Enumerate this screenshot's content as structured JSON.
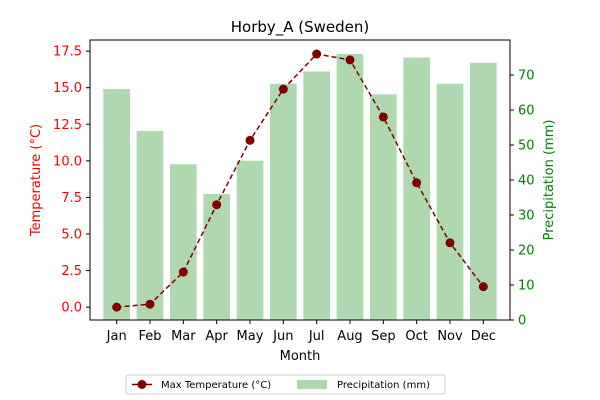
{
  "chart_data": {
    "type": "bar+line",
    "title": "Horby_A (Sweden)",
    "xlabel": "Month",
    "categories": [
      "Jan",
      "Feb",
      "Mar",
      "Apr",
      "May",
      "Jun",
      "Jul",
      "Aug",
      "Sep",
      "Oct",
      "Nov",
      "Dec"
    ],
    "series": [
      {
        "name": "Precipitation (mm)",
        "type": "bar",
        "axis": "right",
        "color": "#b0d8b0",
        "values": [
          66,
          54,
          44.5,
          36,
          45.5,
          67.5,
          71,
          76,
          64.5,
          75,
          67.5,
          73.5
        ]
      },
      {
        "name": "Max Temperature (°C)",
        "type": "line",
        "axis": "left",
        "color": "#800000",
        "values": [
          0.0,
          0.2,
          2.4,
          7.0,
          11.4,
          14.9,
          17.3,
          16.9,
          13.0,
          8.5,
          4.4,
          1.4
        ]
      }
    ],
    "y_left": {
      "label": "Temperature (°C)",
      "color": "#ff0000",
      "range": [
        -0.88,
        18.26
      ],
      "ticks": [
        "0.0",
        "2.5",
        "5.0",
        "7.5",
        "10.0",
        "12.5",
        "15.0",
        "17.5"
      ],
      "tick_values": [
        0,
        2.5,
        5,
        7.5,
        10,
        12.5,
        15,
        17.5
      ]
    },
    "y_right": {
      "label": "Precipitation (mm)",
      "color": "#008000",
      "range": [
        0,
        80
      ],
      "ticks": [
        "0",
        "10",
        "20",
        "30",
        "40",
        "50",
        "60",
        "70"
      ],
      "tick_values": [
        0,
        10,
        20,
        30,
        40,
        50,
        60,
        70
      ]
    },
    "grid": false,
    "legend": {
      "placement": "bottom-center",
      "entries": [
        "Max Temperature (°C)",
        "Precipitation (mm)"
      ]
    }
  }
}
